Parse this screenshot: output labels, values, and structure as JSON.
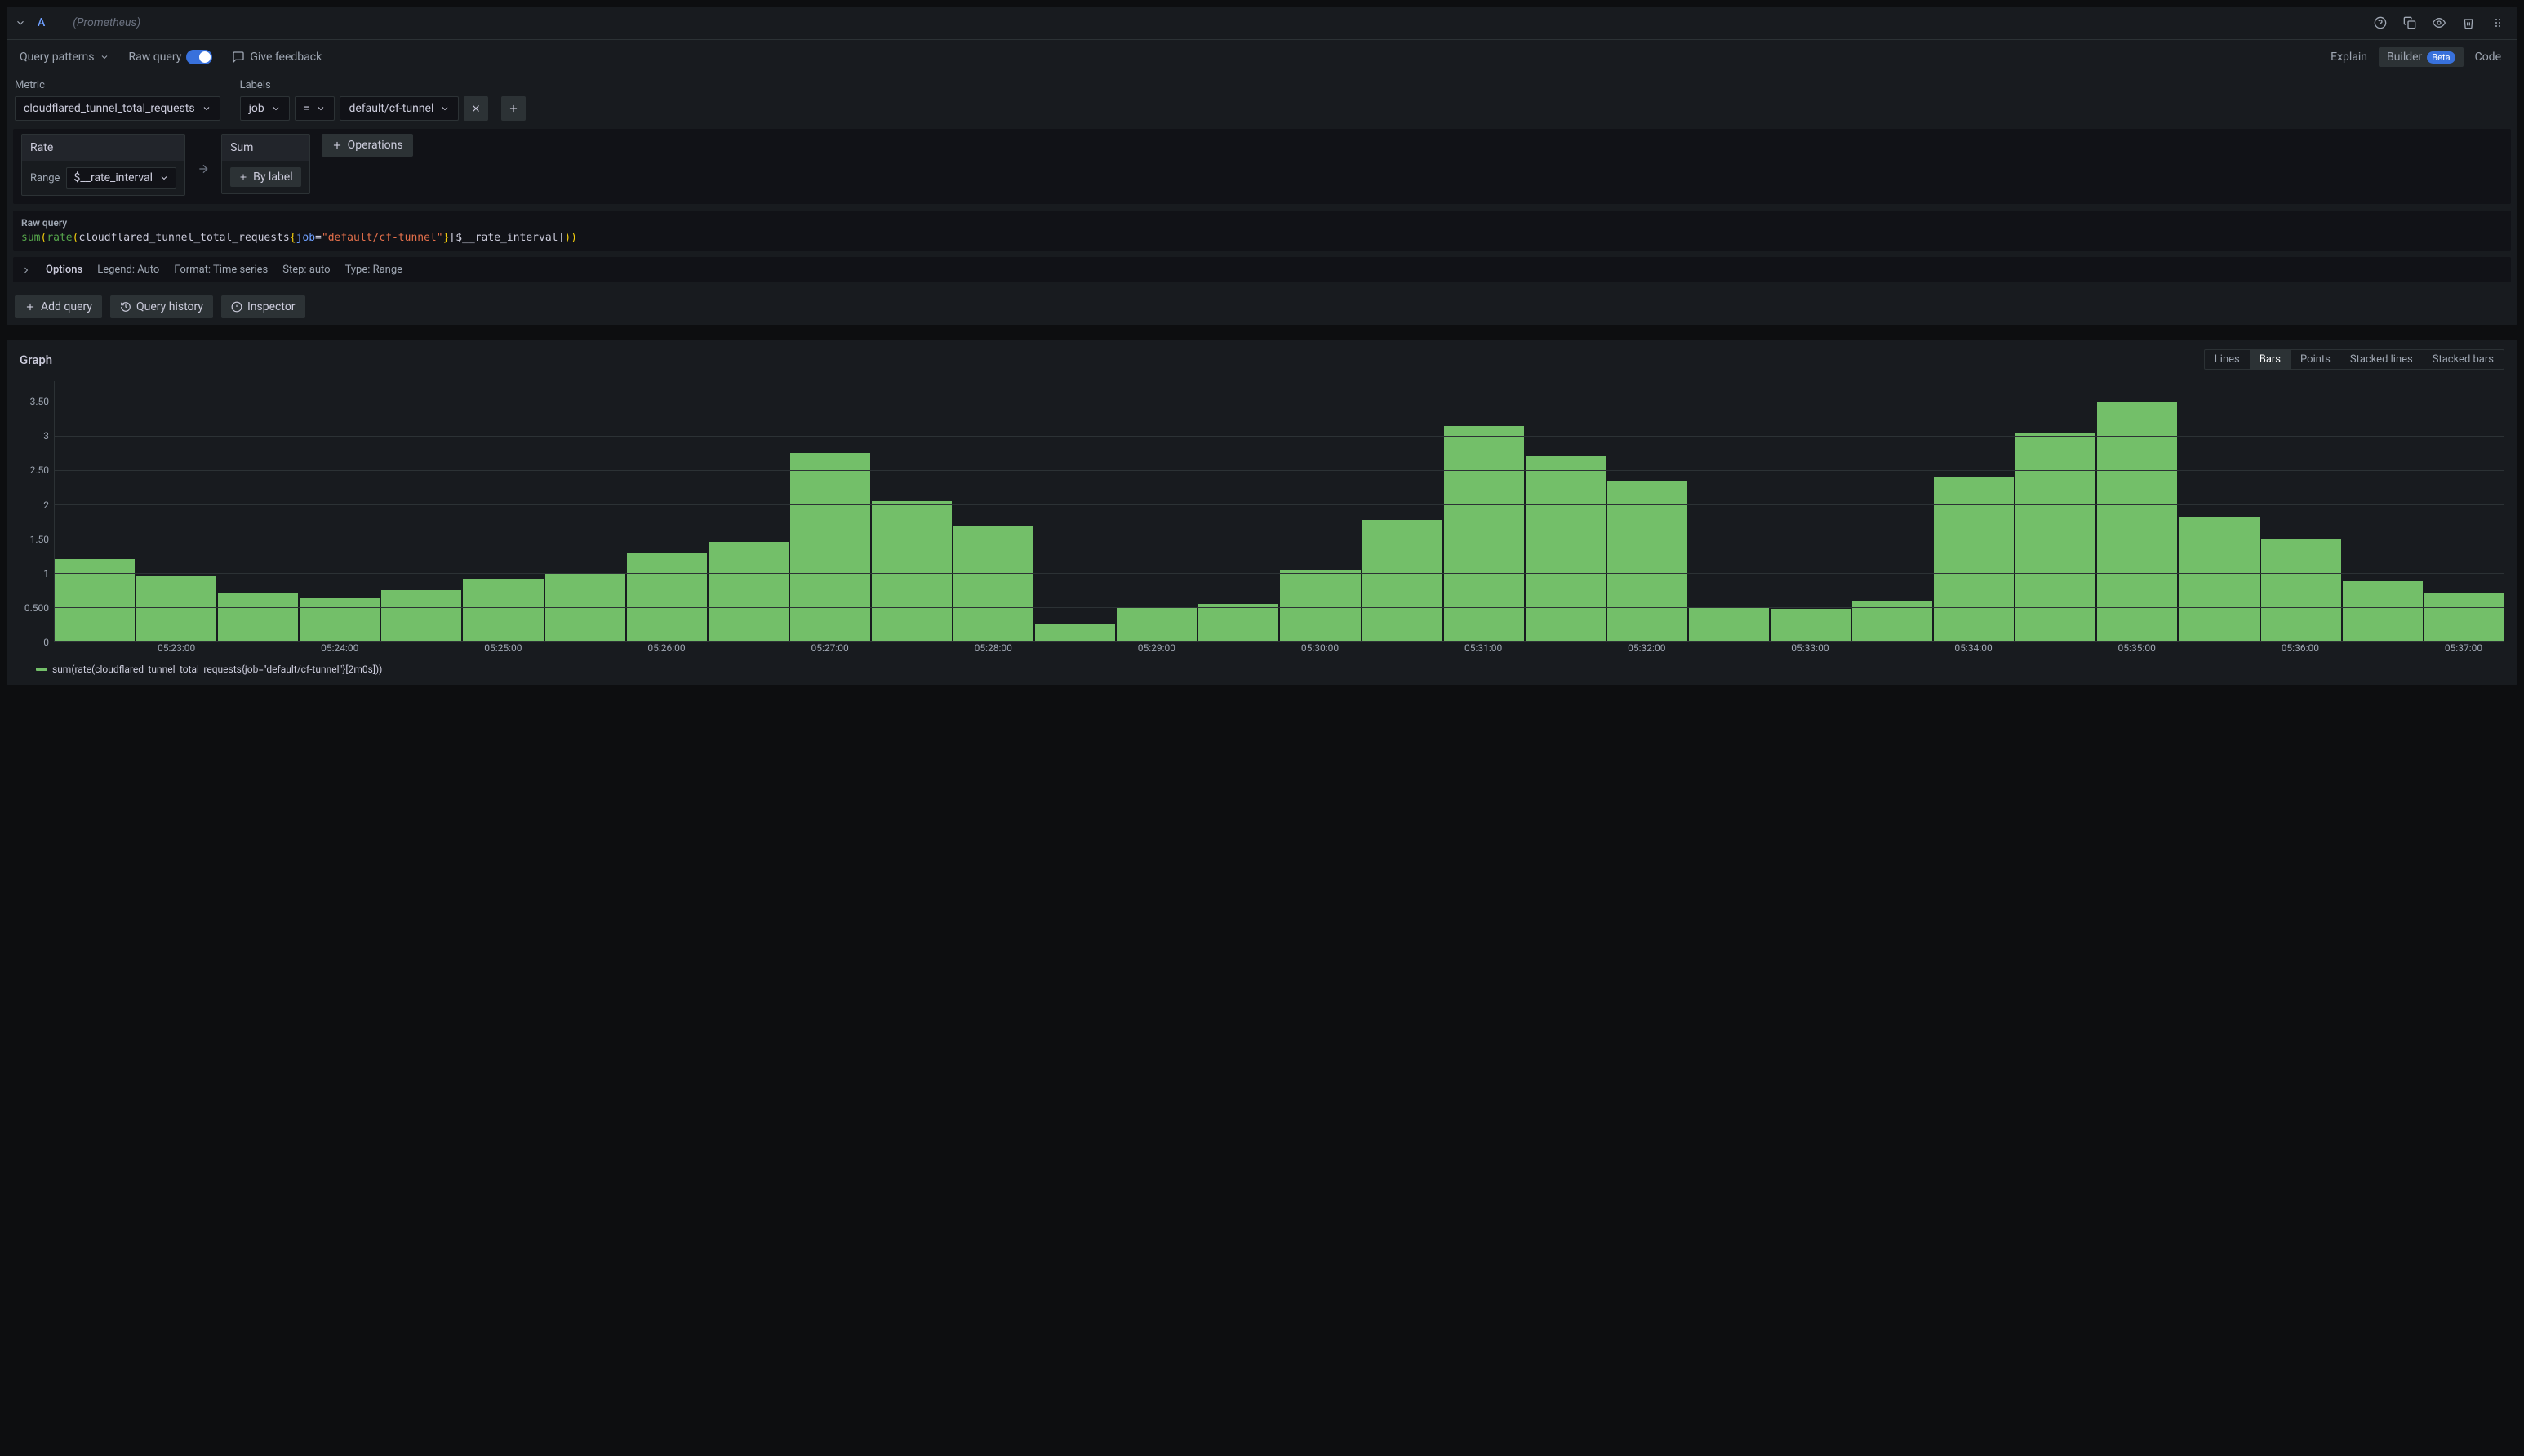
{
  "query": {
    "ref": "A",
    "datasource": "(Prometheus)",
    "toolbar": {
      "patterns": "Query patterns",
      "raw_query": "Raw query",
      "feedback": "Give feedback",
      "explain": "Explain",
      "builder": "Builder",
      "beta": "Beta",
      "code": "Code"
    },
    "metric_label": "Metric",
    "metric_value": "cloudflared_tunnel_total_requests",
    "labels_label": "Labels",
    "label_key": "job",
    "label_op": "=",
    "label_value": "default/cf-tunnel",
    "ops": {
      "rate": "Rate",
      "range_label": "Range",
      "range_value": "$__rate_interval",
      "sum": "Sum",
      "by_label": "By label",
      "operations": "Operations"
    },
    "raw": {
      "label": "Raw query",
      "fn1": "sum",
      "fn2": "rate",
      "id": "cloudflared_tunnel_total_requests",
      "key": "job",
      "val": "\"default/cf-tunnel\"",
      "interval": "[$__rate_interval]"
    },
    "options": {
      "title": "Options",
      "legend": "Legend: Auto",
      "format": "Format: Time series",
      "step": "Step: auto",
      "type": "Type: Range"
    },
    "actions": {
      "add": "Add query",
      "history": "Query history",
      "inspector": "Inspector"
    }
  },
  "graph": {
    "title": "Graph",
    "tabs": [
      "Lines",
      "Bars",
      "Points",
      "Stacked lines",
      "Stacked bars"
    ],
    "active_tab": 1,
    "legend_text": "sum(rate(cloudflared_tunnel_total_requests{job=\"default/cf-tunnel\"}[2m0s]))",
    "chart": {
      "type": "bar",
      "bar_color": "#73bf69",
      "background": "#181b1f",
      "grid_color": "#2c3235",
      "ymax": 3.8,
      "ymin": 0,
      "yticks": [
        0,
        0.5,
        1,
        1.5,
        2,
        2.5,
        3,
        3.5
      ],
      "ytick_labels": [
        "0",
        "0.500",
        "1",
        "1.50",
        "2",
        "2.50",
        "3",
        "3.50"
      ],
      "values": [
        1.2,
        0.95,
        0.72,
        0.63,
        0.75,
        0.92,
        1.0,
        1.3,
        1.45,
        2.75,
        2.05,
        1.68,
        0.25,
        0.5,
        0.55,
        1.05,
        1.78,
        3.15,
        2.7,
        2.35,
        0.5,
        0.48,
        0.58,
        2.4,
        3.05,
        3.5,
        1.82,
        1.5,
        0.88,
        0.7
      ],
      "xticks": [
        "05:23:00",
        "05:24:00",
        "05:25:00",
        "05:26:00",
        "05:27:00",
        "05:28:00",
        "05:29:00",
        "05:30:00",
        "05:31:00",
        "05:32:00",
        "05:33:00",
        "05:34:00",
        "05:35:00",
        "05:36:00",
        "05:37:00"
      ]
    }
  }
}
